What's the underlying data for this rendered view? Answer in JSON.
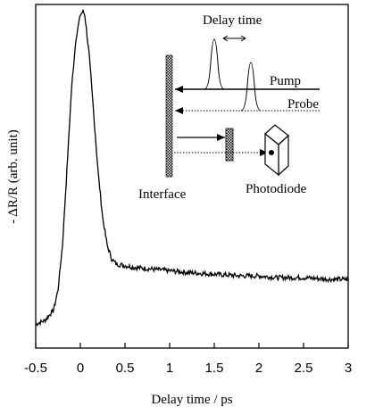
{
  "chart_data": {
    "type": "line",
    "xlabel": "Delay time / ps",
    "ylabel": "- ΔR/R (arb. unit)",
    "xlim": [
      -0.5,
      3.0
    ],
    "ylim": [
      0,
      1
    ],
    "xticks": [
      -0.5,
      0,
      0.5,
      1,
      1.5,
      2,
      2.5,
      3
    ],
    "xtick_labels": [
      "-0.5",
      "0",
      "0.5",
      "1",
      "1.5",
      "2",
      "2.5",
      "3"
    ],
    "yticks_shown": false,
    "grid": false,
    "series": [
      {
        "x": [
          -0.5,
          -0.4,
          -0.3,
          -0.25,
          -0.2,
          -0.15,
          -0.1,
          -0.05,
          0.0,
          0.03,
          0.05,
          0.1,
          0.15,
          0.2,
          0.25,
          0.3,
          0.35,
          0.4,
          0.5,
          0.6,
          0.8,
          1.0,
          1.2,
          1.5,
          1.8,
          2.0,
          2.2,
          2.5,
          2.8,
          3.0
        ],
        "y": [
          0.07,
          0.08,
          0.11,
          0.17,
          0.3,
          0.52,
          0.75,
          0.9,
          0.97,
          0.98,
          0.97,
          0.85,
          0.68,
          0.51,
          0.38,
          0.3,
          0.26,
          0.245,
          0.24,
          0.235,
          0.23,
          0.225,
          0.22,
          0.215,
          0.21,
          0.21,
          0.205,
          0.205,
          0.2,
          0.2
        ]
      }
    ]
  },
  "inset": {
    "delay_time_label": "Delay time",
    "pump_label": "Pump",
    "probe_label": "Probe",
    "interface_label": "Interface",
    "photodiode_label": "Photodiode"
  }
}
